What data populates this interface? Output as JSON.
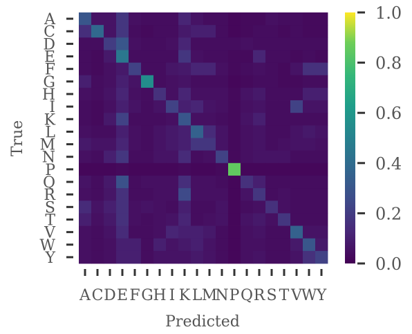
{
  "chart_data": {
    "type": "heatmap",
    "title": "",
    "xlabel": "Predicted",
    "ylabel": "True",
    "x_categories": [
      "A",
      "C",
      "D",
      "E",
      "F",
      "G",
      "H",
      "I",
      "K",
      "L",
      "M",
      "N",
      "P",
      "Q",
      "R",
      "S",
      "T",
      "V",
      "W",
      "Y"
    ],
    "y_categories": [
      "A",
      "C",
      "D",
      "E",
      "F",
      "G",
      "H",
      "I",
      "K",
      "L",
      "M",
      "N",
      "P",
      "Q",
      "R",
      "S",
      "T",
      "V",
      "W",
      "Y"
    ],
    "colormap": "viridis",
    "vmin": 0.0,
    "vmax": 1.0,
    "colorbar_ticks": [
      "0.0",
      "0.2",
      "0.4",
      "0.6",
      "0.8",
      "1.0"
    ],
    "values": [
      [
        0.3,
        0.06,
        0.06,
        0.18,
        0.05,
        0.04,
        0.04,
        0.04,
        0.12,
        0.06,
        0.04,
        0.04,
        0.02,
        0.03,
        0.03,
        0.05,
        0.04,
        0.04,
        0.03,
        0.03
      ],
      [
        0.15,
        0.38,
        0.06,
        0.18,
        0.04,
        0.03,
        0.04,
        0.04,
        0.08,
        0.1,
        0.1,
        0.04,
        0.02,
        0.03,
        0.04,
        0.04,
        0.03,
        0.04,
        0.03,
        0.03
      ],
      [
        0.04,
        0.04,
        0.2,
        0.3,
        0.05,
        0.04,
        0.04,
        0.05,
        0.12,
        0.04,
        0.04,
        0.04,
        0.04,
        0.05,
        0.04,
        0.04,
        0.04,
        0.04,
        0.04,
        0.04
      ],
      [
        0.04,
        0.03,
        0.08,
        0.45,
        0.04,
        0.04,
        0.04,
        0.04,
        0.18,
        0.05,
        0.04,
        0.04,
        0.03,
        0.03,
        0.12,
        0.04,
        0.04,
        0.03,
        0.04,
        0.03
      ],
      [
        0.04,
        0.03,
        0.05,
        0.08,
        0.22,
        0.04,
        0.04,
        0.07,
        0.08,
        0.12,
        0.12,
        0.05,
        0.03,
        0.04,
        0.05,
        0.04,
        0.03,
        0.06,
        0.16,
        0.16
      ],
      [
        0.1,
        0.04,
        0.05,
        0.1,
        0.06,
        0.55,
        0.04,
        0.05,
        0.06,
        0.04,
        0.04,
        0.04,
        0.02,
        0.03,
        0.04,
        0.04,
        0.03,
        0.03,
        0.04,
        0.04
      ],
      [
        0.05,
        0.04,
        0.06,
        0.12,
        0.05,
        0.04,
        0.16,
        0.05,
        0.12,
        0.05,
        0.05,
        0.05,
        0.03,
        0.06,
        0.08,
        0.04,
        0.04,
        0.04,
        0.1,
        0.1
      ],
      [
        0.04,
        0.03,
        0.05,
        0.1,
        0.06,
        0.04,
        0.06,
        0.22,
        0.1,
        0.12,
        0.06,
        0.05,
        0.03,
        0.05,
        0.06,
        0.04,
        0.04,
        0.22,
        0.06,
        0.06
      ],
      [
        0.04,
        0.03,
        0.08,
        0.22,
        0.04,
        0.04,
        0.04,
        0.05,
        0.3,
        0.05,
        0.05,
        0.04,
        0.03,
        0.06,
        0.1,
        0.04,
        0.04,
        0.04,
        0.04,
        0.04
      ],
      [
        0.05,
        0.04,
        0.04,
        0.1,
        0.05,
        0.04,
        0.06,
        0.08,
        0.1,
        0.35,
        0.14,
        0.06,
        0.03,
        0.05,
        0.06,
        0.04,
        0.04,
        0.06,
        0.08,
        0.06
      ],
      [
        0.08,
        0.06,
        0.06,
        0.12,
        0.05,
        0.04,
        0.06,
        0.08,
        0.1,
        0.18,
        0.18,
        0.06,
        0.03,
        0.05,
        0.06,
        0.04,
        0.05,
        0.06,
        0.06,
        0.05
      ],
      [
        0.05,
        0.04,
        0.1,
        0.18,
        0.04,
        0.04,
        0.06,
        0.06,
        0.14,
        0.04,
        0.05,
        0.22,
        0.03,
        0.05,
        0.06,
        0.06,
        0.06,
        0.04,
        0.04,
        0.04
      ],
      [
        0.02,
        0.02,
        0.02,
        0.03,
        0.02,
        0.02,
        0.02,
        0.02,
        0.03,
        0.02,
        0.02,
        0.03,
        0.85,
        0.02,
        0.02,
        0.02,
        0.02,
        0.02,
        0.02,
        0.02
      ],
      [
        0.06,
        0.04,
        0.08,
        0.28,
        0.04,
        0.05,
        0.05,
        0.05,
        0.15,
        0.05,
        0.05,
        0.04,
        0.02,
        0.16,
        0.1,
        0.04,
        0.04,
        0.04,
        0.04,
        0.04
      ],
      [
        0.05,
        0.04,
        0.07,
        0.16,
        0.04,
        0.04,
        0.05,
        0.05,
        0.25,
        0.05,
        0.05,
        0.05,
        0.02,
        0.06,
        0.18,
        0.04,
        0.05,
        0.04,
        0.04,
        0.04
      ],
      [
        0.14,
        0.06,
        0.1,
        0.16,
        0.05,
        0.06,
        0.05,
        0.04,
        0.1,
        0.04,
        0.04,
        0.06,
        0.02,
        0.04,
        0.05,
        0.16,
        0.05,
        0.04,
        0.04,
        0.04
      ],
      [
        0.1,
        0.05,
        0.08,
        0.16,
        0.05,
        0.04,
        0.05,
        0.06,
        0.12,
        0.04,
        0.05,
        0.06,
        0.02,
        0.06,
        0.08,
        0.05,
        0.18,
        0.04,
        0.04,
        0.04
      ],
      [
        0.05,
        0.04,
        0.06,
        0.14,
        0.04,
        0.04,
        0.05,
        0.12,
        0.1,
        0.1,
        0.08,
        0.04,
        0.02,
        0.05,
        0.06,
        0.04,
        0.04,
        0.35,
        0.06,
        0.06
      ],
      [
        0.05,
        0.04,
        0.05,
        0.1,
        0.1,
        0.04,
        0.1,
        0.06,
        0.08,
        0.1,
        0.06,
        0.04,
        0.02,
        0.05,
        0.05,
        0.04,
        0.04,
        0.08,
        0.3,
        0.08
      ],
      [
        0.05,
        0.04,
        0.05,
        0.1,
        0.1,
        0.04,
        0.06,
        0.06,
        0.06,
        0.08,
        0.06,
        0.04,
        0.02,
        0.05,
        0.06,
        0.04,
        0.04,
        0.06,
        0.16,
        0.22
      ]
    ]
  }
}
